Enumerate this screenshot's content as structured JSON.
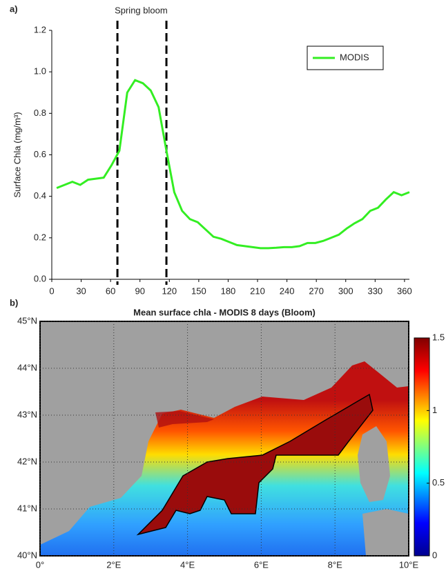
{
  "chart_data": [
    {
      "type": "line",
      "panel_label": "a)",
      "ylabel": "Surface Chla (mg/m³)",
      "annotation": "Spring bloom",
      "bloom_lines": [
        67,
        117
      ],
      "x": [
        5,
        13,
        21,
        29,
        37,
        45,
        53,
        61,
        69,
        77,
        85,
        93,
        101,
        109,
        117,
        125,
        133,
        141,
        149,
        157,
        165,
        173,
        181,
        189,
        197,
        205,
        213,
        221,
        229,
        237,
        245,
        253,
        261,
        269,
        277,
        285,
        293,
        301,
        309,
        317,
        325,
        333,
        341,
        349,
        357,
        365
      ],
      "series": [
        {
          "name": "MODIS",
          "color": "#33ee22",
          "values": [
            0.44,
            0.455,
            0.47,
            0.455,
            0.48,
            0.485,
            0.49,
            0.55,
            0.62,
            0.9,
            0.96,
            0.945,
            0.91,
            0.83,
            0.62,
            0.42,
            0.33,
            0.29,
            0.275,
            0.24,
            0.205,
            0.195,
            0.18,
            0.165,
            0.16,
            0.155,
            0.15,
            0.15,
            0.152,
            0.155,
            0.155,
            0.16,
            0.175,
            0.175,
            0.185,
            0.2,
            0.215,
            0.245,
            0.27,
            0.29,
            0.33,
            0.345,
            0.385,
            0.42,
            0.405,
            0.42
          ]
        }
      ],
      "xlim": [
        0,
        365
      ],
      "xticks": [
        0,
        30,
        60,
        90,
        120,
        150,
        180,
        210,
        240,
        270,
        300,
        330,
        360
      ],
      "ylim": [
        0,
        1.2
      ],
      "yticks": [
        {
          "value": 0,
          "label": "0.0"
        },
        {
          "value": 0.2,
          "label": "0.2"
        },
        {
          "value": 0.4,
          "label": "0.4"
        },
        {
          "value": 0.6,
          "label": "0.6"
        },
        {
          "value": 0.8,
          "label": "0.8"
        },
        {
          "value": 1,
          "label": "1.0"
        },
        {
          "value": 1.2,
          "label": "1.2"
        }
      ],
      "legend": "upper right"
    },
    {
      "type": "map",
      "panel_label": "b)",
      "title": "Mean surface chla - MODIS 8 days (Bloom)",
      "xlim": [
        0,
        10
      ],
      "xticks": [
        {
          "value": 0,
          "label": "0°"
        },
        {
          "value": 2,
          "label": "2°E"
        },
        {
          "value": 4,
          "label": "4°E"
        },
        {
          "value": 6,
          "label": "6°E"
        },
        {
          "value": 8,
          "label": "8°E"
        },
        {
          "value": 10,
          "label": "10°E"
        }
      ],
      "ylim": [
        40,
        45
      ],
      "yticks": [
        {
          "value": 40,
          "label": "40°N"
        },
        {
          "value": 41,
          "label": "41°N"
        },
        {
          "value": 42,
          "label": "42°N"
        },
        {
          "value": 43,
          "label": "43°N"
        },
        {
          "value": 44,
          "label": "44°N"
        },
        {
          "value": 45,
          "label": "45°N"
        }
      ],
      "grid": true,
      "colorbar": {
        "lim": [
          0,
          1.5
        ],
        "ticks": [
          0,
          0.5,
          1,
          1.5
        ]
      }
    }
  ]
}
